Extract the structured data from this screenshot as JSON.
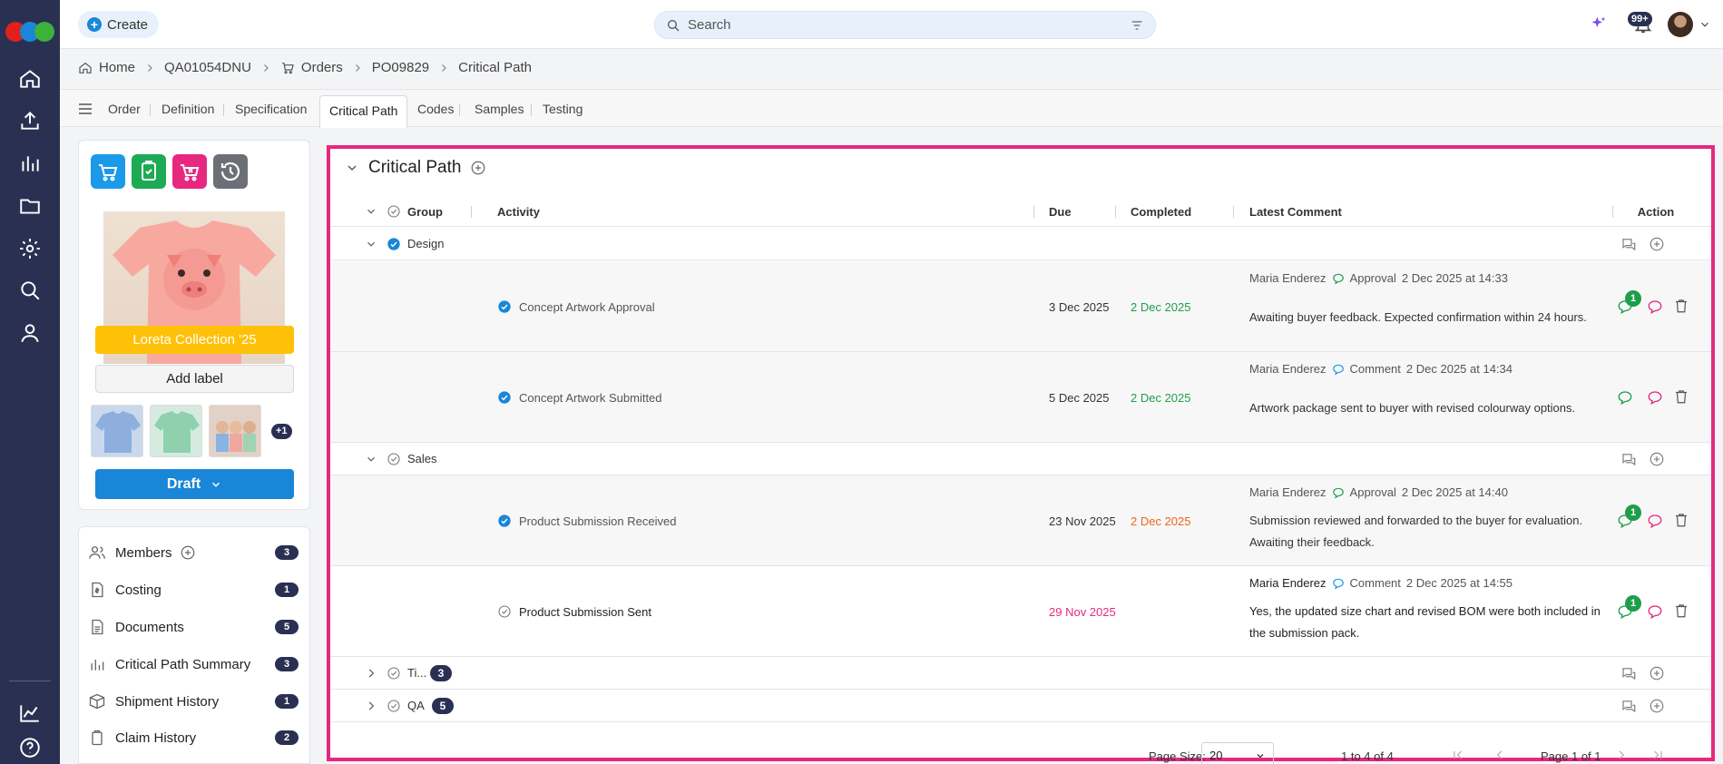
{
  "app": {
    "create_label": "Create",
    "search_placeholder": "Search",
    "notif_count": "99+"
  },
  "breadcrumb": [
    "Home",
    "QA01054DNU",
    "Orders",
    "PO09829",
    "Critical Path"
  ],
  "tabs": [
    "Order",
    "Definition",
    "Specification",
    "Critical Path",
    "Codes",
    "Samples",
    "Testing"
  ],
  "active_tab": "Critical Path",
  "product": {
    "collection_label": "Loreta Collection '25",
    "add_label": "Add label",
    "more_images": "+1",
    "status_button": "Draft"
  },
  "side_list": [
    {
      "label": "Members",
      "count": "3",
      "icon": "members-icon"
    },
    {
      "label": "Costing",
      "count": "1",
      "icon": "costing-icon"
    },
    {
      "label": "Documents",
      "count": "5",
      "icon": "document-icon"
    },
    {
      "label": "Critical Path Summary",
      "count": "3",
      "icon": "chart-icon"
    },
    {
      "label": "Shipment History",
      "count": "1",
      "icon": "box-icon"
    },
    {
      "label": "Claim History",
      "count": "2",
      "icon": "clipboard-icon"
    }
  ],
  "panel": {
    "title": "Critical Path",
    "columns": {
      "group": "Group",
      "activity": "Activity",
      "due": "Due",
      "completed": "Completed",
      "latest_comment": "Latest Comment",
      "action": "Action"
    },
    "groups": [
      {
        "name": "Design",
        "complete": true
      },
      {
        "name": "Sales",
        "complete": false
      },
      {
        "name": "Ti...",
        "count": "3"
      },
      {
        "name": "QA",
        "count": "5"
      }
    ],
    "activities": [
      {
        "name": "Concept Artwork Approval",
        "due": "3 Dec 2025",
        "completed": "2 Dec 2025",
        "completed_color": "#1e9e4a",
        "author": "Maria Enderez",
        "type": "Approval",
        "time": "2 Dec 2025 at 14:33",
        "comment": "Awaiting buyer feedback. Expected confirmation within 24 hours.",
        "badge": "1"
      },
      {
        "name": "Concept Artwork Submitted",
        "due": "5 Dec 2025",
        "completed": "2 Dec 2025",
        "completed_color": "#1e9e4a",
        "author": "Maria Enderez",
        "type": "Comment",
        "time": "2 Dec 2025 at 14:34",
        "comment": "Artwork package sent to buyer with revised colourway options.",
        "badge": ""
      },
      {
        "name": "Product Submission Received",
        "due": "23 Nov 2025",
        "completed": "2 Dec 2025",
        "completed_color": "#f0651f",
        "author": "Maria Enderez",
        "type": "Approval",
        "time": "2 Dec 2025 at 14:40",
        "comment": "Submission reviewed and forwarded to the buyer for evaluation. Awaiting their feedback.",
        "badge": "1"
      },
      {
        "name": "Product Submission Sent",
        "due": "29 Nov 2025",
        "due_color": "#e6287f",
        "completed": "",
        "author": "Maria Enderez",
        "type": "Comment",
        "time": "2 Dec 2025 at 14:55",
        "comment": "Yes, the updated size chart and revised BOM were both included in the submission pack.",
        "badge": "1"
      }
    ],
    "pager": {
      "page_size_label": "Page Size:",
      "page_size": "20",
      "range": "1 to 4 of 4",
      "page": "Page 1 of 1"
    }
  },
  "colors": {
    "accent": "#1a86d8",
    "rail": "#2a3052",
    "highlight": "#e6287f",
    "success": "#1e9e4a"
  }
}
